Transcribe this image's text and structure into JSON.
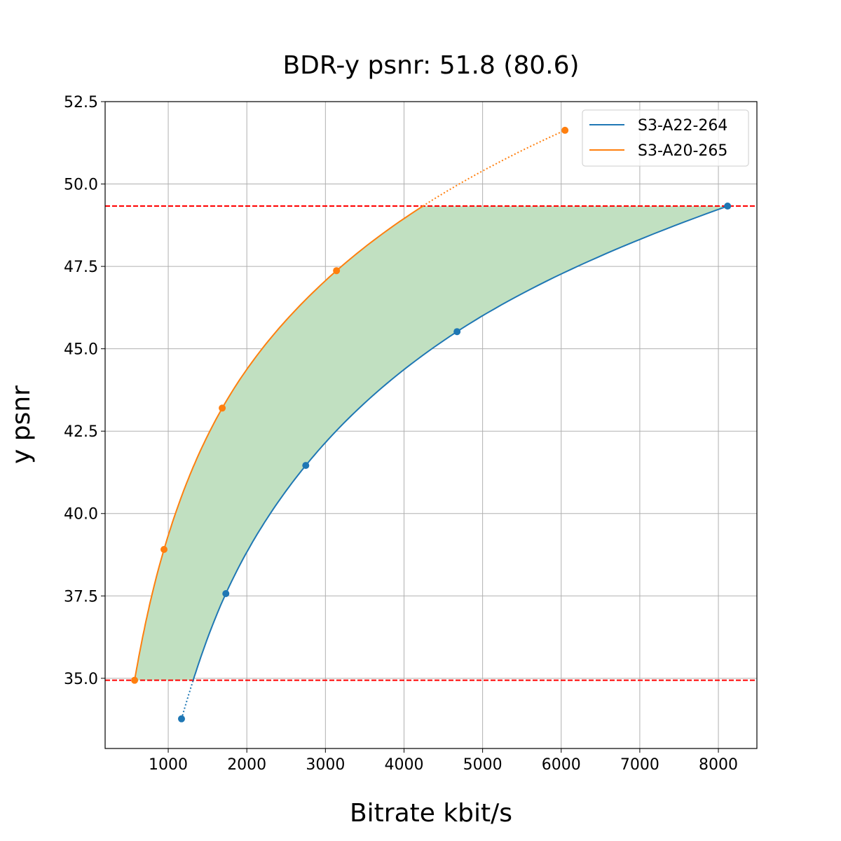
{
  "chart_data": {
    "type": "line",
    "title": "BDR-y psnr: 51.8 (80.6)",
    "xlabel": "Bitrate kbit/s",
    "ylabel": "y psnr",
    "xlim": [
      197,
      8490
    ],
    "ylim": [
      32.87,
      52.5
    ],
    "xticks": [
      1000,
      2000,
      3000,
      4000,
      5000,
      6000,
      7000,
      8000
    ],
    "yticks": [
      35.0,
      37.5,
      40.0,
      42.5,
      45.0,
      47.5,
      50.0,
      52.5
    ],
    "grid": true,
    "legend_position": "top-right",
    "series": [
      {
        "name": "S3-A22-264",
        "color": "#1f77b4",
        "x": [
          1169,
          1733,
          2750,
          4675,
          8117
        ],
        "y": [
          33.77,
          37.57,
          41.46,
          45.52,
          49.33
        ]
      },
      {
        "name": "S3-A20-265",
        "color": "#ff7f0e",
        "x": [
          572,
          946,
          1687,
          3141,
          6048
        ],
        "y": [
          34.94,
          38.91,
          43.2,
          47.37,
          51.63
        ]
      }
    ],
    "reference_lines": [
      {
        "orientation": "horizontal",
        "y": 49.33,
        "color": "#ff0000",
        "style": "dashed"
      },
      {
        "orientation": "horizontal",
        "y": 34.94,
        "color": "#ff0000",
        "style": "dashed"
      }
    ],
    "fill_between": {
      "color": "#c1e0c1",
      "y_range": [
        34.94,
        49.33
      ]
    }
  }
}
